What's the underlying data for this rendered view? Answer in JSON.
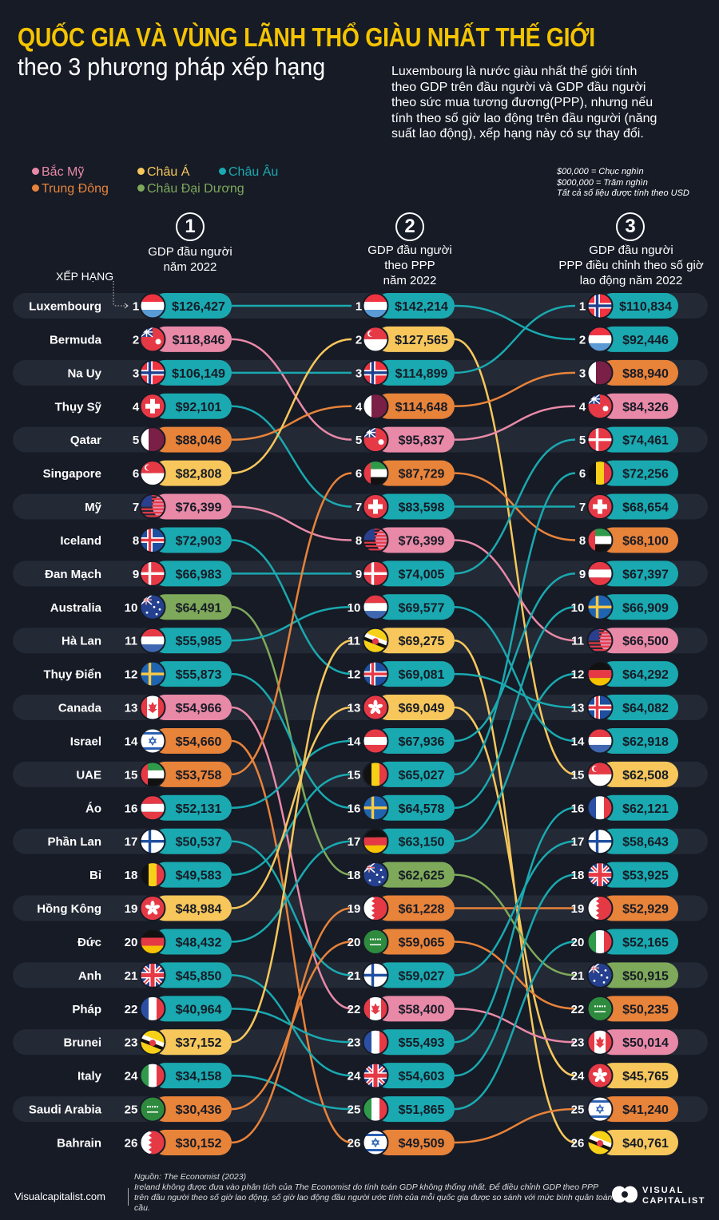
{
  "header": {
    "title": "QUỐC GIA VÀ VÙNG LÃNH THỔ GIÀU NHẤT THẾ GIỚI",
    "subtitle": "theo 3 phương pháp xếp hạng",
    "description": [
      "Luxembourg là nước giàu nhất thế giới tính",
      "theo GDP trên đầu người và GDP đầu người",
      "theo sức mua tương đương(PPP), nhưng nếu",
      "tính theo số giờ lao động trên đầu người (năng",
      "suất lao động), xếp hạng này có sự thay đổi."
    ]
  },
  "legend": [
    {
      "label": "Bắc Mỹ",
      "region": "na",
      "color": "#e889a7"
    },
    {
      "label": "Châu Á",
      "region": "asia",
      "color": "#f7c75c"
    },
    {
      "label": "Châu Âu",
      "region": "eu",
      "color": "#1aa9b0"
    },
    {
      "label": "Trung Đông",
      "region": "me",
      "color": "#e8833a"
    },
    {
      "label": "Châu Đại Dương",
      "region": "oc",
      "color": "#7fa95a"
    }
  ],
  "notes": [
    "$00,000 = Chục nghìn",
    "$000,000 = Trăm nghìn",
    "Tất cả số liệu được tính theo USD"
  ],
  "rank_label": "XẾP HẠNG",
  "chart_data": {
    "type": "table",
    "columns": [
      {
        "number": "1",
        "title": [
          "GDP đầu người",
          "năm 2022"
        ]
      },
      {
        "number": "2",
        "title": [
          "GDP đầu người",
          "theo PPP",
          "năm 2022"
        ]
      },
      {
        "number": "3",
        "title": [
          "GDP đầu người",
          "PPP điều chỉnh theo số giờ",
          "lao động năm 2022"
        ]
      }
    ],
    "countries": {
      "LU": {
        "name": "Luxembourg",
        "region": "eu"
      },
      "BM": {
        "name": "Bermuda",
        "region": "na"
      },
      "NO": {
        "name": "Na Uy",
        "region": "eu"
      },
      "CH": {
        "name": "Thụy Sỹ",
        "region": "eu"
      },
      "QA": {
        "name": "Qatar",
        "region": "me"
      },
      "SG": {
        "name": "Singapore",
        "region": "asia"
      },
      "US": {
        "name": "Mỹ",
        "region": "na"
      },
      "IS": {
        "name": "Iceland",
        "region": "eu"
      },
      "DK": {
        "name": "Đan Mạch",
        "region": "eu"
      },
      "AU": {
        "name": "Australia",
        "region": "oc"
      },
      "NL": {
        "name": "Hà Lan",
        "region": "eu"
      },
      "SE": {
        "name": "Thụy Điển",
        "region": "eu"
      },
      "CA": {
        "name": "Canada",
        "region": "na"
      },
      "IL": {
        "name": "Israel",
        "region": "me"
      },
      "AE": {
        "name": "UAE",
        "region": "me"
      },
      "AT": {
        "name": "Áo",
        "region": "eu"
      },
      "FI": {
        "name": "Phần Lan",
        "region": "eu"
      },
      "BE": {
        "name": "Bỉ",
        "region": "eu"
      },
      "HK": {
        "name": "Hồng Kông",
        "region": "asia"
      },
      "DE": {
        "name": "Đức",
        "region": "eu"
      },
      "GB": {
        "name": "Anh",
        "region": "eu"
      },
      "FR": {
        "name": "Pháp",
        "region": "eu"
      },
      "BN": {
        "name": "Brunei",
        "region": "asia"
      },
      "IT": {
        "name": "Italy",
        "region": "eu"
      },
      "SA": {
        "name": "Saudi Arabia",
        "region": "me"
      },
      "BH": {
        "name": "Bahrain",
        "region": "me"
      }
    },
    "rankings": [
      [
        [
          "LU",
          "$126,427"
        ],
        [
          "BM",
          "$118,846"
        ],
        [
          "NO",
          "$106,149"
        ],
        [
          "CH",
          "$92,101"
        ],
        [
          "QA",
          "$88,046"
        ],
        [
          "SG",
          "$82,808"
        ],
        [
          "US",
          "$76,399"
        ],
        [
          "IS",
          "$72,903"
        ],
        [
          "DK",
          "$66,983"
        ],
        [
          "AU",
          "$64,491"
        ],
        [
          "NL",
          "$55,985"
        ],
        [
          "SE",
          "$55,873"
        ],
        [
          "CA",
          "$54,966"
        ],
        [
          "IL",
          "$54,660"
        ],
        [
          "AE",
          "$53,758"
        ],
        [
          "AT",
          "$52,131"
        ],
        [
          "FI",
          "$50,537"
        ],
        [
          "BE",
          "$49,583"
        ],
        [
          "HK",
          "$48,984"
        ],
        [
          "DE",
          "$48,432"
        ],
        [
          "GB",
          "$45,850"
        ],
        [
          "FR",
          "$40,964"
        ],
        [
          "BN",
          "$37,152"
        ],
        [
          "IT",
          "$34,158"
        ],
        [
          "SA",
          "$30,436"
        ],
        [
          "BH",
          "$30,152"
        ]
      ],
      [
        [
          "LU",
          "$142,214"
        ],
        [
          "SG",
          "$127,565"
        ],
        [
          "NO",
          "$114,899"
        ],
        [
          "QA",
          "$114,648"
        ],
        [
          "BM",
          "$95,837"
        ],
        [
          "AE",
          "$87,729"
        ],
        [
          "CH",
          "$83,598"
        ],
        [
          "US",
          "$76,399"
        ],
        [
          "DK",
          "$74,005"
        ],
        [
          "NL",
          "$69,577"
        ],
        [
          "BN",
          "$69,275"
        ],
        [
          "IS",
          "$69,081"
        ],
        [
          "HK",
          "$69,049"
        ],
        [
          "AT",
          "$67,936"
        ],
        [
          "BE",
          "$65,027"
        ],
        [
          "SE",
          "$64,578"
        ],
        [
          "DE",
          "$63,150"
        ],
        [
          "AU",
          "$62,625"
        ],
        [
          "BH",
          "$61,228"
        ],
        [
          "SA",
          "$59,065"
        ],
        [
          "FI",
          "$59,027"
        ],
        [
          "CA",
          "$58,400"
        ],
        [
          "FR",
          "$55,493"
        ],
        [
          "GB",
          "$54,603"
        ],
        [
          "IT",
          "$51,865"
        ],
        [
          "IL",
          "$49,509"
        ]
      ],
      [
        [
          "NO",
          "$110,834"
        ],
        [
          "LU",
          "$92,446"
        ],
        [
          "QA",
          "$88,940"
        ],
        [
          "BM",
          "$84,326"
        ],
        [
          "DK",
          "$74,461"
        ],
        [
          "BE",
          "$72,256"
        ],
        [
          "CH",
          "$68,654"
        ],
        [
          "AE",
          "$68,100"
        ],
        [
          "AT",
          "$67,397"
        ],
        [
          "SE",
          "$66,909"
        ],
        [
          "US",
          "$66,500"
        ],
        [
          "DE",
          "$64,292"
        ],
        [
          "IS",
          "$64,082"
        ],
        [
          "NL",
          "$62,918"
        ],
        [
          "SG",
          "$62,508"
        ],
        [
          "FR",
          "$62,121"
        ],
        [
          "FI",
          "$58,643"
        ],
        [
          "GB",
          "$53,925"
        ],
        [
          "BH",
          "$52,929"
        ],
        [
          "IT",
          "$52,165"
        ],
        [
          "AU",
          "$50,915"
        ],
        [
          "SA",
          "$50,235"
        ],
        [
          "CA",
          "$50,014"
        ],
        [
          "HK",
          "$45,765"
        ],
        [
          "IL",
          "$41,240"
        ],
        [
          "BN",
          "$40,761"
        ]
      ]
    ]
  },
  "footer": {
    "site": "Visualcapitalist.com",
    "source": "Nguồn: The Economist (2023)",
    "note": "Ireland không được đưa vào phân tích của The Economist do tính toán GDP không thống nhất. Để điều chỉnh GDP theo PPP trên đầu người theo số giờ lao động, số giờ lao động đầu người ước tính của mỗi quốc gia được so sánh với mức bình quân toàn cầu.",
    "logo": "VISUAL CAPITALIST"
  }
}
